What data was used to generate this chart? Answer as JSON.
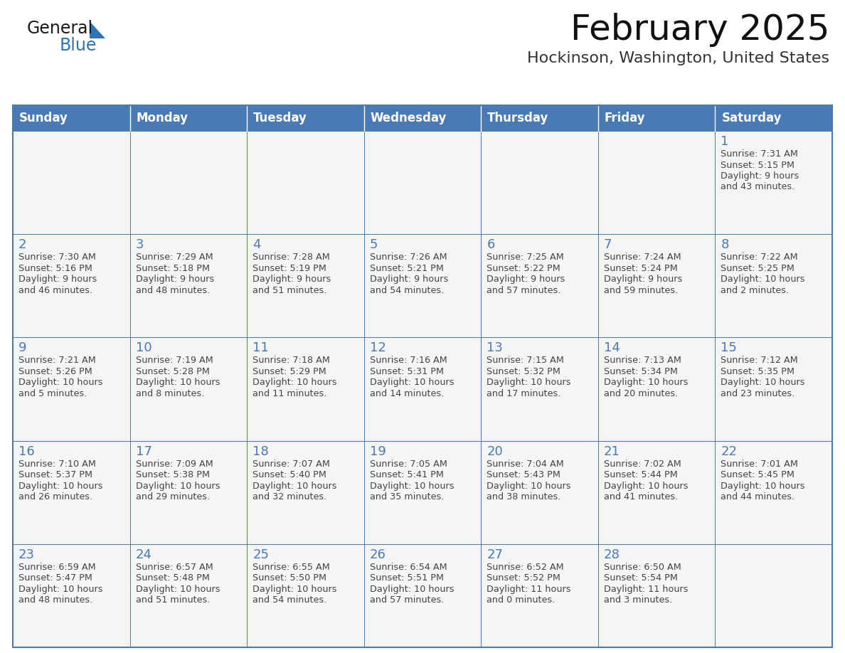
{
  "title": "February 2025",
  "subtitle": "Hockinson, Washington, United States",
  "days_of_week": [
    "Sunday",
    "Monday",
    "Tuesday",
    "Wednesday",
    "Thursday",
    "Friday",
    "Saturday"
  ],
  "header_bg": "#4a7ab5",
  "header_text": "#FFFFFF",
  "cell_bg": "#f5f5f5",
  "border_color": "#4a7ab5",
  "title_color": "#111111",
  "subtitle_color": "#333333",
  "day_number_color": "#4a7ab5",
  "cell_text_color": "#444444",
  "logo_general_color": "#1a1a1a",
  "logo_blue_color": "#2E75B6",
  "logo_triangle_color": "#2E75B6",
  "calendar_data": [
    [
      null,
      null,
      null,
      null,
      null,
      null,
      {
        "day": 1,
        "sunrise": "7:31 AM",
        "sunset": "5:15 PM",
        "daylight": "9 hours\nand 43 minutes."
      }
    ],
    [
      {
        "day": 2,
        "sunrise": "7:30 AM",
        "sunset": "5:16 PM",
        "daylight": "9 hours\nand 46 minutes."
      },
      {
        "day": 3,
        "sunrise": "7:29 AM",
        "sunset": "5:18 PM",
        "daylight": "9 hours\nand 48 minutes."
      },
      {
        "day": 4,
        "sunrise": "7:28 AM",
        "sunset": "5:19 PM",
        "daylight": "9 hours\nand 51 minutes."
      },
      {
        "day": 5,
        "sunrise": "7:26 AM",
        "sunset": "5:21 PM",
        "daylight": "9 hours\nand 54 minutes."
      },
      {
        "day": 6,
        "sunrise": "7:25 AM",
        "sunset": "5:22 PM",
        "daylight": "9 hours\nand 57 minutes."
      },
      {
        "day": 7,
        "sunrise": "7:24 AM",
        "sunset": "5:24 PM",
        "daylight": "9 hours\nand 59 minutes."
      },
      {
        "day": 8,
        "sunrise": "7:22 AM",
        "sunset": "5:25 PM",
        "daylight": "10 hours\nand 2 minutes."
      }
    ],
    [
      {
        "day": 9,
        "sunrise": "7:21 AM",
        "sunset": "5:26 PM",
        "daylight": "10 hours\nand 5 minutes."
      },
      {
        "day": 10,
        "sunrise": "7:19 AM",
        "sunset": "5:28 PM",
        "daylight": "10 hours\nand 8 minutes."
      },
      {
        "day": 11,
        "sunrise": "7:18 AM",
        "sunset": "5:29 PM",
        "daylight": "10 hours\nand 11 minutes."
      },
      {
        "day": 12,
        "sunrise": "7:16 AM",
        "sunset": "5:31 PM",
        "daylight": "10 hours\nand 14 minutes."
      },
      {
        "day": 13,
        "sunrise": "7:15 AM",
        "sunset": "5:32 PM",
        "daylight": "10 hours\nand 17 minutes."
      },
      {
        "day": 14,
        "sunrise": "7:13 AM",
        "sunset": "5:34 PM",
        "daylight": "10 hours\nand 20 minutes."
      },
      {
        "day": 15,
        "sunrise": "7:12 AM",
        "sunset": "5:35 PM",
        "daylight": "10 hours\nand 23 minutes."
      }
    ],
    [
      {
        "day": 16,
        "sunrise": "7:10 AM",
        "sunset": "5:37 PM",
        "daylight": "10 hours\nand 26 minutes."
      },
      {
        "day": 17,
        "sunrise": "7:09 AM",
        "sunset": "5:38 PM",
        "daylight": "10 hours\nand 29 minutes."
      },
      {
        "day": 18,
        "sunrise": "7:07 AM",
        "sunset": "5:40 PM",
        "daylight": "10 hours\nand 32 minutes."
      },
      {
        "day": 19,
        "sunrise": "7:05 AM",
        "sunset": "5:41 PM",
        "daylight": "10 hours\nand 35 minutes."
      },
      {
        "day": 20,
        "sunrise": "7:04 AM",
        "sunset": "5:43 PM",
        "daylight": "10 hours\nand 38 minutes."
      },
      {
        "day": 21,
        "sunrise": "7:02 AM",
        "sunset": "5:44 PM",
        "daylight": "10 hours\nand 41 minutes."
      },
      {
        "day": 22,
        "sunrise": "7:01 AM",
        "sunset": "5:45 PM",
        "daylight": "10 hours\nand 44 minutes."
      }
    ],
    [
      {
        "day": 23,
        "sunrise": "6:59 AM",
        "sunset": "5:47 PM",
        "daylight": "10 hours\nand 48 minutes."
      },
      {
        "day": 24,
        "sunrise": "6:57 AM",
        "sunset": "5:48 PM",
        "daylight": "10 hours\nand 51 minutes."
      },
      {
        "day": 25,
        "sunrise": "6:55 AM",
        "sunset": "5:50 PM",
        "daylight": "10 hours\nand 54 minutes."
      },
      {
        "day": 26,
        "sunrise": "6:54 AM",
        "sunset": "5:51 PM",
        "daylight": "10 hours\nand 57 minutes."
      },
      {
        "day": 27,
        "sunrise": "6:52 AM",
        "sunset": "5:52 PM",
        "daylight": "11 hours\nand 0 minutes."
      },
      {
        "day": 28,
        "sunrise": "6:50 AM",
        "sunset": "5:54 PM",
        "daylight": "11 hours\nand 3 minutes."
      },
      null
    ]
  ]
}
